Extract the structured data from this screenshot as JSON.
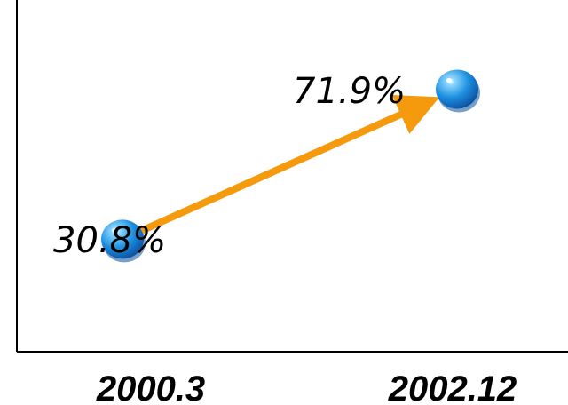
{
  "chart_data": {
    "type": "line",
    "categories": [
      "2000.3",
      "2002.12"
    ],
    "series": [
      {
        "values": [
          30.8,
          71.9
        ],
        "labels": [
          "30.8%",
          "71.9%"
        ]
      }
    ],
    "xlabel": "",
    "ylabel": "",
    "ylim": [
      0,
      100
    ],
    "grid": false,
    "legend": "none",
    "colors": {
      "line": "#f59a0c",
      "marker": "#1e90e0",
      "marker_highlight": "#8fd8ff",
      "marker_shadow": "#0a4f9e",
      "axis": "#000000"
    }
  }
}
